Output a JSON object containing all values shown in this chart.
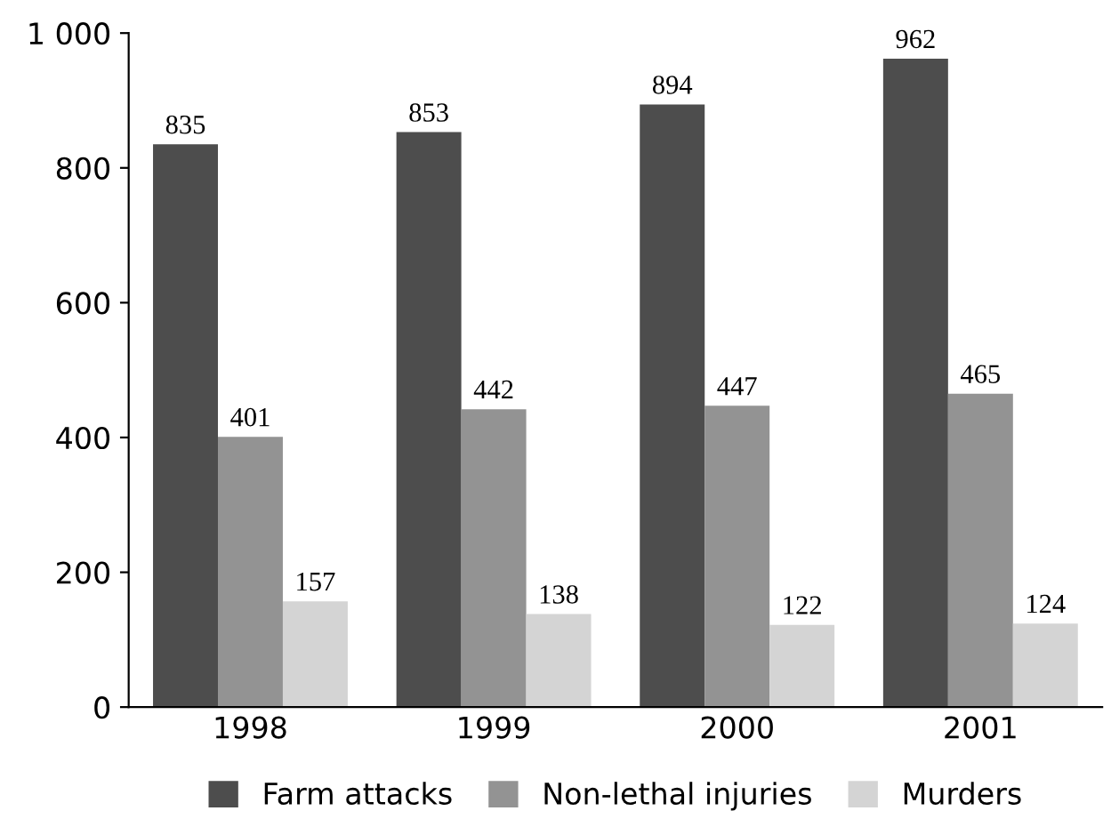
{
  "chart_data": {
    "type": "bar",
    "categories": [
      "1998",
      "1999",
      "2000",
      "2001"
    ],
    "series": [
      {
        "name": "Farm attacks",
        "color": "#4d4d4d",
        "values": [
          835,
          853,
          894,
          962
        ]
      },
      {
        "name": "Non-lethal injuries",
        "color": "#939393",
        "values": [
          401,
          442,
          447,
          465
        ]
      },
      {
        "name": "Murders",
        "color": "#d4d4d4",
        "values": [
          157,
          138,
          122,
          124
        ]
      }
    ],
    "ylim": [
      0,
      1000
    ],
    "yticks": [
      0,
      200,
      400,
      600,
      800,
      {
        "value": 1000,
        "label": "1 000"
      }
    ],
    "data_labels": true,
    "grid": false,
    "legend": "bottom"
  }
}
